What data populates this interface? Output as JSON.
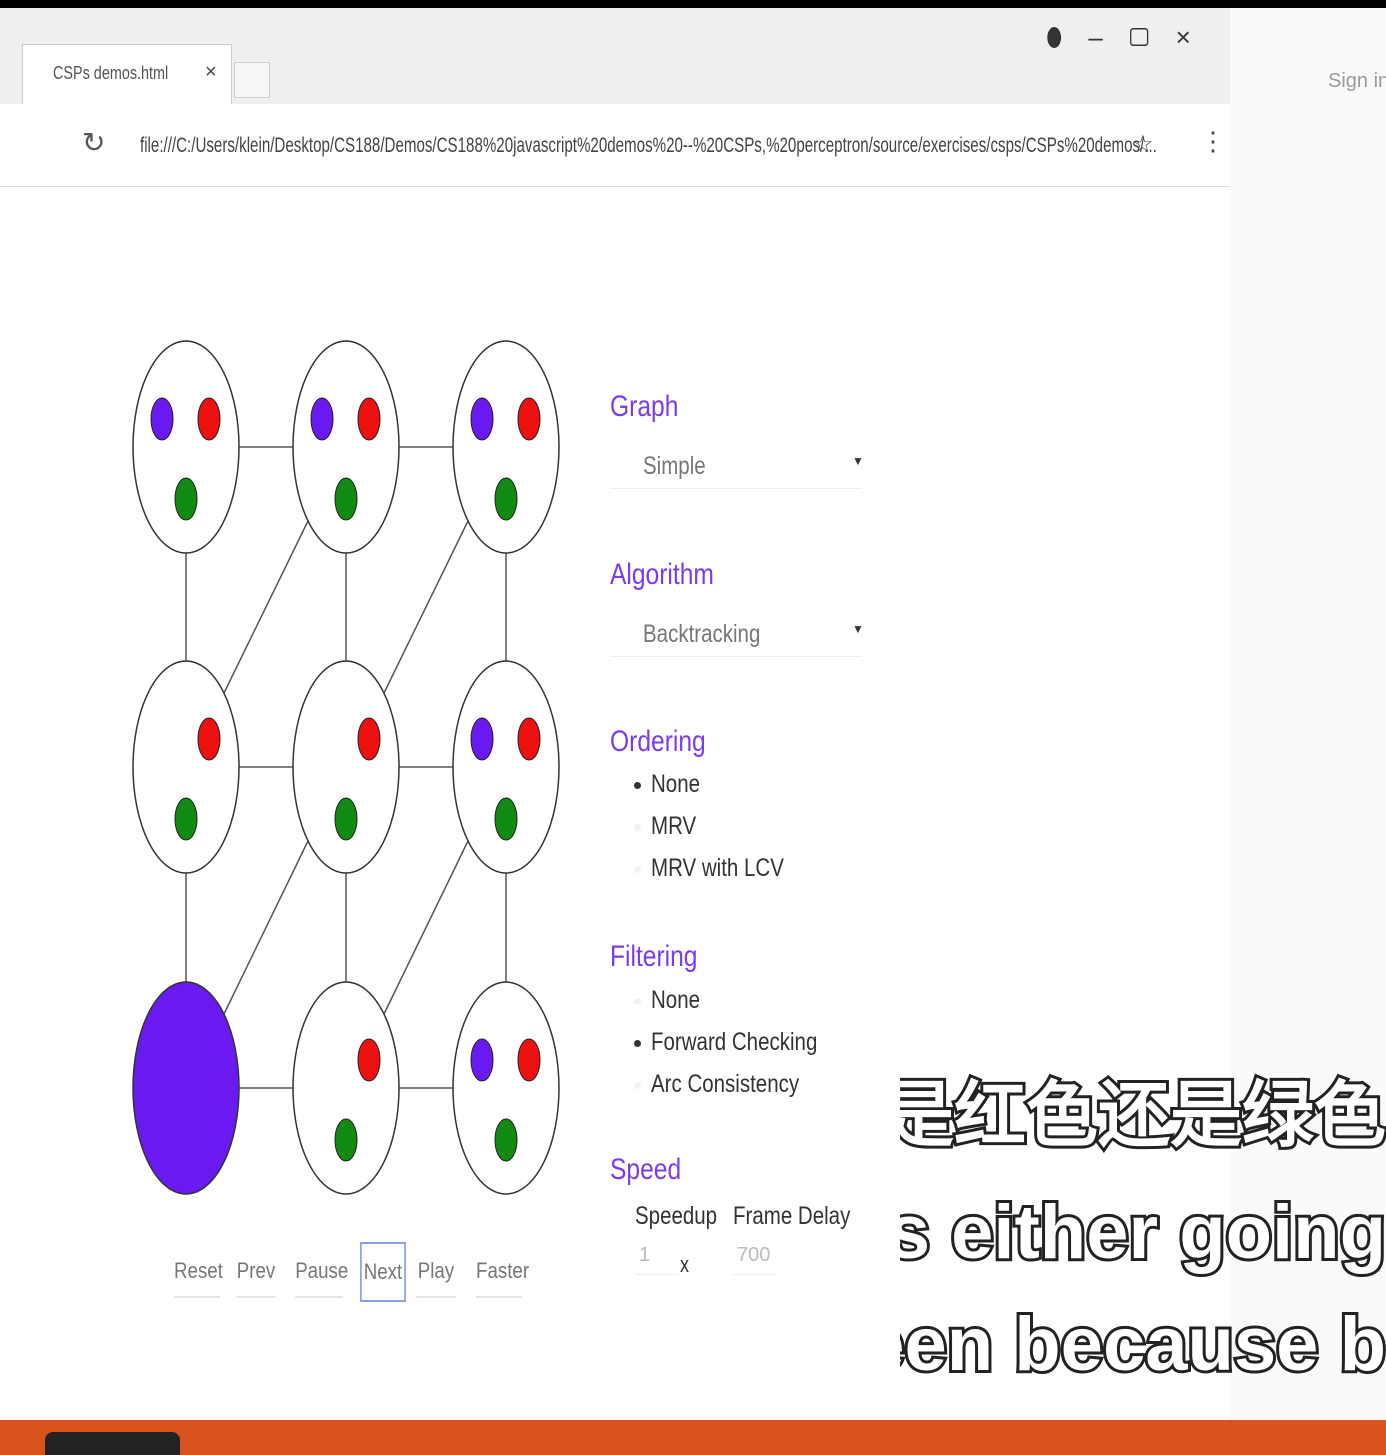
{
  "browser": {
    "tab_title": "CSPs demos.html",
    "url": "file:///C:/Users/klein/Desktop/CS188/Demos/CS188%20javascript%20demos%20--%20CSPs,%20perceptron/source/exercises/csps/CSPs%20demos/...",
    "sign_in": "Sign in"
  },
  "controls": {
    "graph": {
      "label": "Graph",
      "value": "Simple"
    },
    "algorithm": {
      "label": "Algorithm",
      "value": "Backtracking"
    },
    "ordering": {
      "label": "Ordering",
      "options": [
        "None",
        "MRV",
        "MRV with LCV"
      ],
      "selected": 0
    },
    "filtering": {
      "label": "Filtering",
      "options": [
        "None",
        "Forward Checking",
        "Arc Consistency"
      ],
      "selected": 1
    },
    "speed": {
      "label": "Speed",
      "speedup_label": "Speedup",
      "speedup": 1,
      "speedup_unit": "x",
      "frame_delay_label": "Frame Delay",
      "frame_delay": 700
    }
  },
  "buttons": [
    "Reset",
    "Prev",
    "Pause",
    "Next",
    "Play",
    "Faster"
  ],
  "subtitles": [
    "它要么是红色还是绿色",
    "it's either going",
    "green because b"
  ]
}
